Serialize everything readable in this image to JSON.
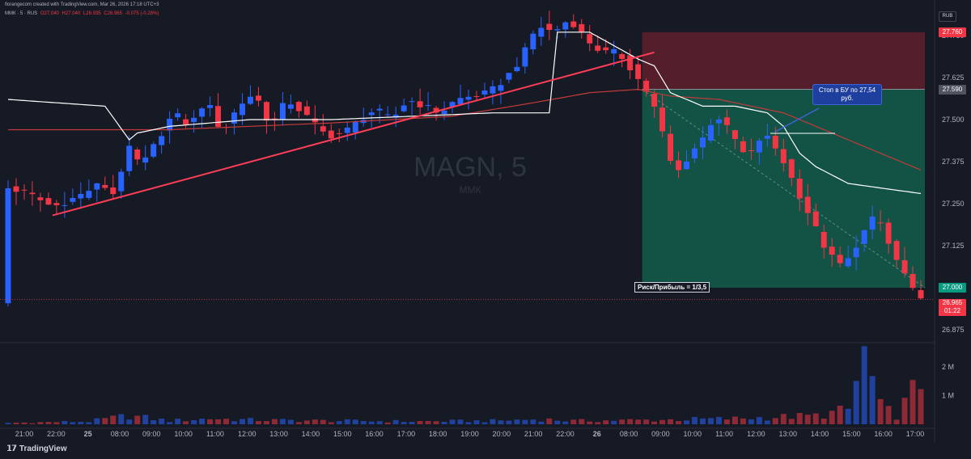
{
  "header": {
    "credit": "fiorangecom created with TradingView.com, Mar 26, 2026 17:18 UTC+3",
    "symbol_line": "ММК · 5 · RUS",
    "ohlc": [
      "O27.040",
      "H27.040",
      "L26.935",
      "C26.965",
      "-0.075 (-0.28%)"
    ],
    "currency": "RUB"
  },
  "watermark": {
    "title": "MAGN, 5",
    "subtitle": "ММК"
  },
  "annotations": {
    "callout": "Стоп в БУ по 27,54 руб.",
    "risk_reward": "Риск/Прибыль = 1/3,5"
  },
  "price_tags": {
    "stop": "27.760",
    "entry": "27.590",
    "target": "27.000",
    "last": "26.965",
    "countdown": "01:22"
  },
  "colors": {
    "background": "#161a25",
    "up_candle": "#2962ff",
    "down_candle": "#f23645",
    "stop_zone": "#5c1f2c",
    "target_zone": "#125a4a",
    "target_tag": "#089981",
    "vwap": "#ffffff",
    "ma": "#c43a3a",
    "trendline": "#ff3d57"
  },
  "branding": "TradingView",
  "chart_data": {
    "type": "candlestick",
    "symbol": "MAGN",
    "timeframe": "5",
    "y_axis": {
      "ticks": [
        27.75,
        27.625,
        27.5,
        27.375,
        27.25,
        27.125,
        26.875
      ],
      "tick_labels": [
        "27.750",
        "27.625",
        "27.500",
        "27.375",
        "27.250",
        "27.125",
        "26.875"
      ],
      "range": [
        26.85,
        27.8
      ]
    },
    "volume_axis": {
      "ticks": [
        2000000,
        1000000
      ],
      "tick_labels": [
        "2 M",
        "1 M"
      ]
    },
    "x_axis": {
      "tick_labels": [
        "21:00",
        "22:00",
        "25",
        "08:00",
        "09:00",
        "10:00",
        "11:00",
        "12:00",
        "13:00",
        "14:00",
        "15:00",
        "16:00",
        "17:00",
        "18:00",
        "19:00",
        "20:00",
        "21:00",
        "22:00",
        "26",
        "08:00",
        "09:00",
        "10:00",
        "11:00",
        "12:00",
        "13:00",
        "14:00",
        "15:00",
        "16:00",
        "17:00"
      ]
    },
    "price_path": [
      [
        0,
        27.3
      ],
      [
        3,
        27.28
      ],
      [
        6,
        27.24
      ],
      [
        9,
        27.27
      ],
      [
        12,
        27.31
      ],
      [
        14,
        27.27
      ],
      [
        15,
        27.43
      ],
      [
        17,
        27.36
      ],
      [
        19,
        27.44
      ],
      [
        21,
        27.52
      ],
      [
        23,
        27.48
      ],
      [
        25,
        27.56
      ],
      [
        27,
        27.46
      ],
      [
        29,
        27.54
      ],
      [
        31,
        27.58
      ],
      [
        33,
        27.48
      ],
      [
        35,
        27.56
      ],
      [
        37,
        27.52
      ],
      [
        40,
        27.45
      ],
      [
        42,
        27.46
      ],
      [
        44,
        27.5
      ],
      [
        46,
        27.53
      ],
      [
        48,
        27.5
      ],
      [
        50,
        27.56
      ],
      [
        52,
        27.54
      ],
      [
        54,
        27.52
      ],
      [
        56,
        27.56
      ],
      [
        58,
        27.57
      ],
      [
        60,
        27.58
      ],
      [
        62,
        27.62
      ],
      [
        64,
        27.68
      ],
      [
        66,
        27.78
      ],
      [
        68,
        27.76
      ],
      [
        70,
        27.8
      ],
      [
        72,
        27.74
      ],
      [
        74,
        27.7
      ],
      [
        76,
        27.7
      ],
      [
        78,
        27.64
      ],
      [
        79,
        27.6
      ],
      [
        80,
        27.57
      ],
      [
        81,
        27.5
      ],
      [
        82,
        27.42
      ],
      [
        83,
        27.33
      ],
      [
        85,
        27.4
      ],
      [
        87,
        27.46
      ],
      [
        88,
        27.52
      ],
      [
        90,
        27.46
      ],
      [
        92,
        27.38
      ],
      [
        94,
        27.46
      ],
      [
        96,
        27.4
      ],
      [
        98,
        27.3
      ],
      [
        100,
        27.2
      ],
      [
        102,
        27.1
      ],
      [
        104,
        27.06
      ],
      [
        106,
        27.15
      ],
      [
        108,
        27.22
      ],
      [
        110,
        27.1
      ],
      [
        112,
        27.02
      ],
      [
        113,
        26.96
      ]
    ],
    "vwap_path": [
      [
        0,
        27.56
      ],
      [
        12,
        27.54
      ],
      [
        15,
        27.44
      ],
      [
        16,
        27.46
      ],
      [
        20,
        27.48
      ],
      [
        30,
        27.5
      ],
      [
        40,
        27.5
      ],
      [
        60,
        27.52
      ],
      [
        67,
        27.52
      ],
      [
        68,
        27.76
      ],
      [
        72,
        27.76
      ],
      [
        75,
        27.72
      ],
      [
        78,
        27.68
      ],
      [
        80,
        27.66
      ],
      [
        82,
        27.58
      ],
      [
        86,
        27.54
      ],
      [
        90,
        27.54
      ],
      [
        94,
        27.52
      ],
      [
        96,
        27.48
      ],
      [
        98,
        27.4
      ],
      [
        100,
        27.36
      ],
      [
        104,
        27.31
      ],
      [
        107,
        27.3
      ],
      [
        110,
        27.29
      ],
      [
        113,
        27.28
      ]
    ],
    "ma_path": [
      [
        0,
        27.47
      ],
      [
        10,
        27.47
      ],
      [
        15,
        27.47
      ],
      [
        20,
        27.47
      ],
      [
        30,
        27.48
      ],
      [
        40,
        27.49
      ],
      [
        55,
        27.51
      ],
      [
        65,
        27.55
      ],
      [
        72,
        27.58
      ],
      [
        78,
        27.59
      ],
      [
        82,
        27.57
      ],
      [
        88,
        27.56
      ],
      [
        92,
        27.54
      ],
      [
        96,
        27.52
      ],
      [
        100,
        27.48
      ],
      [
        104,
        27.44
      ],
      [
        108,
        27.4
      ],
      [
        113,
        27.35
      ]
    ],
    "trendline": [
      [
        5.5,
        27.215
      ],
      [
        80,
        27.7
      ]
    ],
    "position": {
      "entry": 27.59,
      "stop": 27.76,
      "target": 27.0,
      "start_index": 79,
      "end_index": 113,
      "risk_reward": "1/3,5"
    },
    "volume_path": [
      [
        0,
        0.05
      ],
      [
        10,
        0.1
      ],
      [
        15,
        0.3
      ],
      [
        20,
        0.12
      ],
      [
        25,
        0.2
      ],
      [
        30,
        0.15
      ],
      [
        40,
        0.12
      ],
      [
        50,
        0.1
      ],
      [
        60,
        0.12
      ],
      [
        66,
        0.18
      ],
      [
        70,
        0.12
      ],
      [
        80,
        0.15
      ],
      [
        90,
        0.2
      ],
      [
        100,
        0.3
      ],
      [
        104,
        0.5
      ],
      [
        106,
        2.4
      ],
      [
        108,
        0.6
      ],
      [
        110,
        0.3
      ],
      [
        113,
        1.5
      ]
    ]
  }
}
